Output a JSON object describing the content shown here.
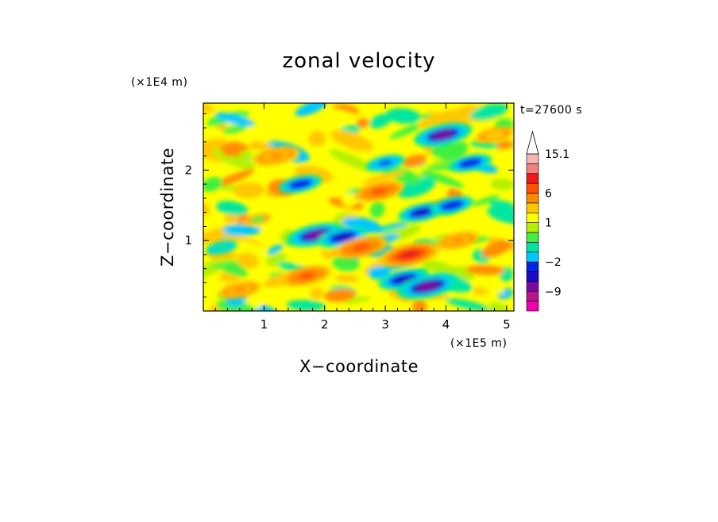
{
  "chart_data": {
    "type": "heatmap",
    "title": "zonal velocity",
    "xlabel": "X−coordinate",
    "ylabel": "Z−coordinate",
    "x_multiplier_label": "(×1E5 m)",
    "y_multiplier_label": "(×1E4 m)",
    "time_label": "t=27600 s",
    "xlim": [
      0,
      5.12
    ],
    "ylim": [
      0,
      2.95
    ],
    "xticks": [
      1,
      2,
      3,
      4,
      5
    ],
    "xtick_labels": [
      "1",
      "2",
      "3",
      "4",
      "5"
    ],
    "yticks": [
      1,
      2
    ],
    "ytick_labels": [
      "1",
      "2"
    ],
    "grid": false,
    "colorbar": {
      "levels": [
        {
          "value": -15,
          "color": "#ee00aa"
        },
        {
          "value": -12,
          "color": "#b8148c"
        },
        {
          "value": -9,
          "color": "#7a0aa0"
        },
        {
          "value": -6,
          "color": "#1a0abe"
        },
        {
          "value": -4,
          "color": "#0024e6"
        },
        {
          "value": -2,
          "color": "#00c8ff"
        },
        {
          "value": -1,
          "color": "#00e6a0"
        },
        {
          "value": 0,
          "color": "#40f040"
        },
        {
          "value": 0.5,
          "color": "#b4f000"
        },
        {
          "value": 1,
          "color": "#ffff00"
        },
        {
          "value": 2,
          "color": "#ffc800"
        },
        {
          "value": 4,
          "color": "#ff8c00"
        },
        {
          "value": 6,
          "color": "#ff5000"
        },
        {
          "value": 8,
          "color": "#ee1a1a"
        },
        {
          "value": 10,
          "color": "#f08282"
        },
        {
          "value": 12.5,
          "color": "#f4b4b4"
        },
        {
          "value": 15.1,
          "color": "#ffffff"
        }
      ],
      "tick_labels": [
        {
          "value": 15.1,
          "label": "15.1"
        },
        {
          "value": 6,
          "label": "6"
        },
        {
          "value": 1,
          "label": "1"
        },
        {
          "value": -2,
          "label": "−2"
        },
        {
          "value": -9,
          "label": "−9"
        }
      ],
      "extend": "max"
    },
    "features": [
      {
        "x": 1.85,
        "z": 1.08,
        "value": -8
      },
      {
        "x": 2.3,
        "z": 1.05,
        "value": -6
      },
      {
        "x": 3.3,
        "z": 0.45,
        "value": -6
      },
      {
        "x": 3.7,
        "z": 0.35,
        "value": -9
      },
      {
        "x": 3.6,
        "z": 1.4,
        "value": -5
      },
      {
        "x": 4.1,
        "z": 1.5,
        "value": -4
      },
      {
        "x": 4.4,
        "z": 2.1,
        "value": -4
      },
      {
        "x": 3.95,
        "z": 2.5,
        "value": -8
      },
      {
        "x": 3.0,
        "z": 2.1,
        "value": -3
      },
      {
        "x": 1.6,
        "z": 1.8,
        "value": -4
      },
      {
        "x": 0.6,
        "z": 0.3,
        "value": 4
      },
      {
        "x": 1.2,
        "z": 2.2,
        "value": 5
      },
      {
        "x": 1.7,
        "z": 0.5,
        "value": 6
      },
      {
        "x": 2.6,
        "z": 0.9,
        "value": 7
      },
      {
        "x": 3.4,
        "z": 0.8,
        "value": 9
      },
      {
        "x": 2.9,
        "z": 1.7,
        "value": 6
      },
      {
        "x": 4.2,
        "z": 1.0,
        "value": 4
      },
      {
        "x": 4.8,
        "z": 2.5,
        "value": 3
      },
      {
        "x": 0.3,
        "z": 0.9,
        "value": -1
      },
      {
        "x": 0.9,
        "z": 1.3,
        "value": 0
      }
    ]
  }
}
